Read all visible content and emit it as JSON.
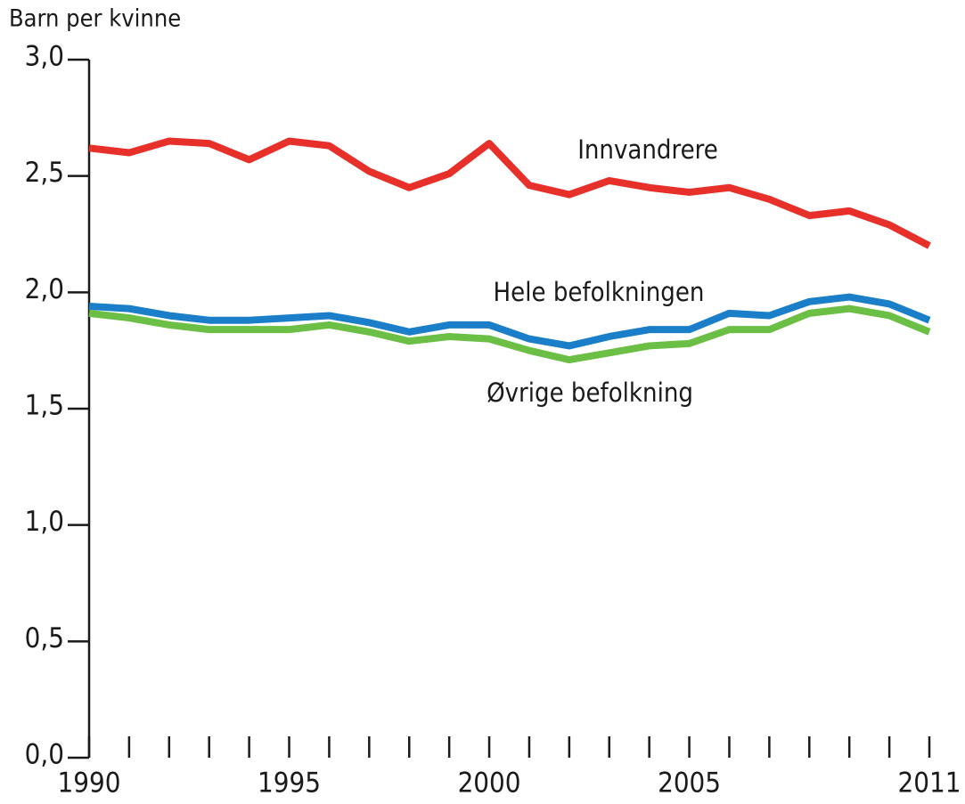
{
  "chart_data": {
    "type": "line",
    "ylabel": "Barn per kvinne",
    "x": [
      1990,
      1991,
      1992,
      1993,
      1994,
      1995,
      1996,
      1997,
      1998,
      1999,
      2000,
      2001,
      2002,
      2003,
      2004,
      2005,
      2006,
      2007,
      2008,
      2009,
      2010,
      2011
    ],
    "series": [
      {
        "name": "Innvandrere",
        "color": "#e8302a",
        "values": [
          2.62,
          2.6,
          2.65,
          2.64,
          2.57,
          2.65,
          2.63,
          2.52,
          2.45,
          2.51,
          2.64,
          2.46,
          2.42,
          2.48,
          2.45,
          2.43,
          2.45,
          2.4,
          2.33,
          2.35,
          2.29,
          2.2
        ]
      },
      {
        "name": "Hele befolkningen",
        "color": "#1a7fc8",
        "values": [
          1.94,
          1.93,
          1.9,
          1.88,
          1.88,
          1.89,
          1.9,
          1.87,
          1.83,
          1.86,
          1.86,
          1.8,
          1.77,
          1.81,
          1.84,
          1.84,
          1.91,
          1.9,
          1.96,
          1.98,
          1.95,
          1.88
        ]
      },
      {
        "name": "Øvrige befolkning",
        "color": "#6bbf45",
        "values": [
          1.91,
          1.89,
          1.86,
          1.84,
          1.84,
          1.84,
          1.86,
          1.83,
          1.79,
          1.81,
          1.8,
          1.75,
          1.71,
          1.74,
          1.77,
          1.78,
          1.84,
          1.84,
          1.91,
          1.93,
          1.9,
          1.83
        ]
      }
    ],
    "xlim": [
      1990,
      2011
    ],
    "xticks": [
      1990,
      1995,
      2000,
      2005,
      2011
    ],
    "ylim": [
      0,
      3
    ],
    "yticks": [
      {
        "value": 0,
        "label": "0,0"
      },
      {
        "value": 0.5,
        "label": "0,5"
      },
      {
        "value": 1,
        "label": "1,0"
      },
      {
        "value": 1.5,
        "label": "1,5"
      },
      {
        "value": 2,
        "label": "2,0"
      },
      {
        "value": 2.5,
        "label": "2,5"
      },
      {
        "value": 3,
        "label": "3,0"
      }
    ],
    "grid": false
  }
}
